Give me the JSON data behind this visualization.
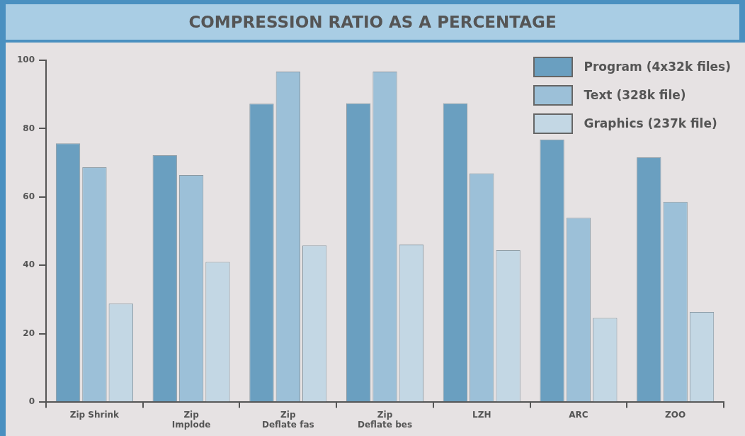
{
  "chart_data": {
    "type": "bar",
    "title": "COMPRESSION RATIO AS A PERCENTAGE",
    "categories": [
      "Zip Shrink",
      "Zip\nImplode",
      "Zip\nDeflate fas",
      "Zip\nDeflate bes",
      "LZH",
      "ARC",
      "ZOO"
    ],
    "series": [
      {
        "name": "Program (4x32k files)",
        "color": "#6a9fc0",
        "values": [
          75.7,
          72.2,
          87.3,
          87.4,
          87.4,
          76.8,
          71.6
        ]
      },
      {
        "name": "Text (328k file)",
        "color": "#9cc0d8",
        "values": [
          68.7,
          66.4,
          96.7,
          96.7,
          66.9,
          53.9,
          58.6
        ]
      },
      {
        "name": "Graphics (237k file)",
        "color": "#c3d7e4",
        "values": [
          28.8,
          41.0,
          45.8,
          46.1,
          44.4,
          24.6,
          26.4
        ]
      }
    ],
    "ylim": [
      0,
      100
    ],
    "yticks": [
      0,
      20,
      40,
      60,
      80,
      100
    ],
    "grid": false,
    "legend": "top right"
  }
}
